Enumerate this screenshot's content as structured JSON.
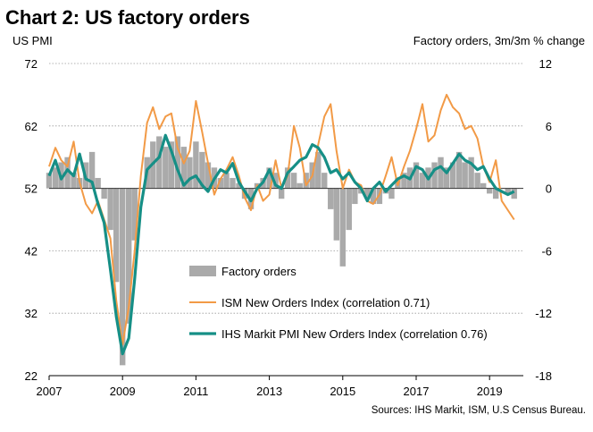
{
  "chart_data": {
    "type": "line",
    "title": "Chart 2: US factory orders",
    "left_axis_label": "US PMI",
    "right_axis_label": "Factory orders, 3m/3m % change",
    "source": "Sources: IHS Markit, ISM, U.S Census Bureau.",
    "left_ylim": [
      22,
      72
    ],
    "left_ticks": [
      "72",
      "62",
      "52",
      "42",
      "32",
      "22"
    ],
    "right_ylim": [
      -18,
      12
    ],
    "right_ticks": [
      "12",
      "6",
      "0",
      "-6",
      "-12",
      "-18"
    ],
    "xlim": [
      2007,
      2019.92
    ],
    "x_ticks": [
      "2007",
      "2009",
      "2011",
      "2013",
      "2015",
      "2017",
      "2019"
    ],
    "colors": {
      "bars": "#aaaaaa",
      "ism": "#f29a46",
      "ihs": "#168f86",
      "grid": "#9a9a9a",
      "baseline": "#333333"
    },
    "legend": [
      {
        "label": "Factory orders",
        "kind": "bar"
      },
      {
        "label": "ISM New Orders Index  (correlation 0.71)",
        "kind": "line-thin"
      },
      {
        "label": "IHS Markit PMI New Orders Index (correlation 0.76)",
        "kind": "line-thick"
      }
    ],
    "series": [
      {
        "name": "Factory orders",
        "axis": "right",
        "type": "bar",
        "x": [
          2007.0,
          2007.17,
          2007.33,
          2007.5,
          2007.67,
          2007.83,
          2008.0,
          2008.17,
          2008.33,
          2008.5,
          2008.67,
          2008.83,
          2009.0,
          2009.17,
          2009.33,
          2009.5,
          2009.67,
          2009.83,
          2010.0,
          2010.17,
          2010.33,
          2010.5,
          2010.67,
          2010.83,
          2011.0,
          2011.17,
          2011.33,
          2011.5,
          2011.67,
          2011.83,
          2012.0,
          2012.17,
          2012.33,
          2012.5,
          2012.67,
          2012.83,
          2013.0,
          2013.17,
          2013.33,
          2013.5,
          2013.67,
          2013.83,
          2014.0,
          2014.17,
          2014.33,
          2014.5,
          2014.67,
          2014.83,
          2015.0,
          2015.17,
          2015.33,
          2015.5,
          2015.67,
          2015.83,
          2016.0,
          2016.17,
          2016.33,
          2016.5,
          2016.67,
          2016.83,
          2017.0,
          2017.17,
          2017.33,
          2017.5,
          2017.67,
          2017.83,
          2018.0,
          2018.17,
          2018.33,
          2018.5,
          2018.67,
          2018.83,
          2019.0,
          2019.17,
          2019.33,
          2019.5,
          2019.67
        ],
        "values": [
          1.5,
          2.0,
          2.5,
          3.0,
          1.5,
          1.0,
          2.5,
          3.5,
          1.0,
          -1.0,
          -4.0,
          -9.0,
          -17.0,
          -13.0,
          -5.0,
          0.0,
          3.0,
          4.5,
          5.0,
          4.0,
          4.5,
          5.0,
          4.0,
          3.0,
          4.5,
          3.5,
          2.5,
          2.0,
          1.0,
          1.5,
          1.0,
          0.5,
          -1.0,
          -2.0,
          0.5,
          1.0,
          2.0,
          1.5,
          -1.0,
          2.0,
          1.5,
          0.5,
          1.5,
          2.5,
          3.5,
          1.5,
          -2.0,
          -5.0,
          -7.5,
          -4.0,
          -1.5,
          -0.5,
          -1.0,
          -1.5,
          -1.5,
          -0.5,
          -1.0,
          1.0,
          1.5,
          2.0,
          2.5,
          1.5,
          2.0,
          2.5,
          3.0,
          2.0,
          2.5,
          3.5,
          2.5,
          3.0,
          1.5,
          0.5,
          -0.5,
          -1.0,
          0.0,
          -0.5,
          -1.0
        ]
      },
      {
        "name": "ISM New Orders Index",
        "axis": "left",
        "x": [
          2007.0,
          2007.17,
          2007.33,
          2007.5,
          2007.67,
          2007.83,
          2008.0,
          2008.17,
          2008.33,
          2008.5,
          2008.67,
          2008.83,
          2009.0,
          2009.17,
          2009.33,
          2009.5,
          2009.67,
          2009.83,
          2010.0,
          2010.17,
          2010.33,
          2010.5,
          2010.67,
          2010.83,
          2011.0,
          2011.17,
          2011.33,
          2011.5,
          2011.67,
          2011.83,
          2012.0,
          2012.17,
          2012.33,
          2012.5,
          2012.67,
          2012.83,
          2013.0,
          2013.17,
          2013.33,
          2013.5,
          2013.67,
          2013.83,
          2014.0,
          2014.17,
          2014.33,
          2014.5,
          2014.67,
          2014.83,
          2015.0,
          2015.17,
          2015.33,
          2015.5,
          2015.67,
          2015.83,
          2016.0,
          2016.17,
          2016.33,
          2016.5,
          2016.67,
          2016.83,
          2017.0,
          2017.17,
          2017.33,
          2017.5,
          2017.67,
          2017.83,
          2018.0,
          2018.17,
          2018.33,
          2018.5,
          2018.67,
          2018.83,
          2019.0,
          2019.17,
          2019.33,
          2019.5,
          2019.67
        ],
        "values": [
          55.5,
          58.5,
          56.5,
          55.5,
          59.5,
          53.0,
          49.5,
          48.0,
          50.0,
          47.0,
          44.0,
          34.0,
          27.0,
          33.0,
          42.0,
          54.0,
          62.5,
          65.0,
          61.5,
          63.5,
          64.0,
          58.5,
          56.0,
          58.0,
          66.0,
          61.0,
          56.0,
          51.0,
          53.5,
          55.0,
          57.0,
          54.0,
          50.5,
          48.5,
          52.5,
          50.0,
          51.0,
          56.5,
          52.0,
          54.0,
          62.0,
          58.5,
          52.5,
          54.0,
          59.0,
          63.5,
          65.5,
          58.0,
          52.0,
          55.0,
          53.0,
          52.5,
          50.0,
          49.5,
          51.0,
          54.0,
          57.0,
          52.5,
          55.5,
          58.0,
          61.5,
          65.5,
          59.5,
          60.5,
          64.5,
          67.0,
          65.0,
          64.0,
          61.5,
          62.0,
          60.0,
          55.5,
          53.0,
          56.5,
          50.0,
          48.5,
          47.0
        ]
      },
      {
        "name": "IHS Markit PMI New Orders Index",
        "axis": "left",
        "x": [
          2007.0,
          2007.17,
          2007.33,
          2007.5,
          2007.67,
          2007.83,
          2008.0,
          2008.17,
          2008.33,
          2008.5,
          2008.67,
          2008.83,
          2009.0,
          2009.17,
          2009.33,
          2009.5,
          2009.67,
          2009.83,
          2010.0,
          2010.17,
          2010.33,
          2010.5,
          2010.67,
          2010.83,
          2011.0,
          2011.17,
          2011.33,
          2011.5,
          2011.67,
          2011.83,
          2012.0,
          2012.17,
          2012.33,
          2012.5,
          2012.67,
          2012.83,
          2013.0,
          2013.17,
          2013.33,
          2013.5,
          2013.67,
          2013.83,
          2014.0,
          2014.17,
          2014.33,
          2014.5,
          2014.67,
          2014.83,
          2015.0,
          2015.17,
          2015.33,
          2015.5,
          2015.67,
          2015.83,
          2016.0,
          2016.17,
          2016.33,
          2016.5,
          2016.67,
          2016.83,
          2017.0,
          2017.17,
          2017.33,
          2017.5,
          2017.67,
          2017.83,
          2018.0,
          2018.17,
          2018.33,
          2018.5,
          2018.67,
          2018.83,
          2019.0,
          2019.17,
          2019.33,
          2019.5,
          2019.67
        ],
        "values": [
          54.0,
          56.5,
          53.5,
          55.0,
          54.0,
          57.5,
          53.5,
          53.0,
          49.5,
          46.5,
          39.0,
          31.5,
          25.5,
          28.0,
          37.5,
          49.0,
          55.0,
          56.0,
          57.0,
          60.5,
          58.0,
          55.0,
          52.5,
          53.5,
          54.0,
          52.5,
          51.5,
          53.5,
          55.0,
          54.5,
          56.0,
          53.0,
          51.5,
          50.0,
          52.0,
          53.0,
          55.0,
          52.5,
          52.0,
          54.5,
          55.5,
          56.5,
          57.0,
          59.0,
          58.5,
          57.0,
          54.5,
          55.0,
          53.5,
          54.5,
          53.0,
          52.0,
          50.0,
          52.0,
          53.0,
          51.5,
          52.5,
          53.5,
          54.0,
          53.5,
          55.5,
          55.0,
          53.5,
          55.0,
          55.5,
          54.5,
          56.0,
          57.5,
          56.5,
          56.0,
          55.0,
          55.5,
          53.5,
          52.0,
          51.5,
          51.0,
          51.5
        ]
      }
    ]
  }
}
